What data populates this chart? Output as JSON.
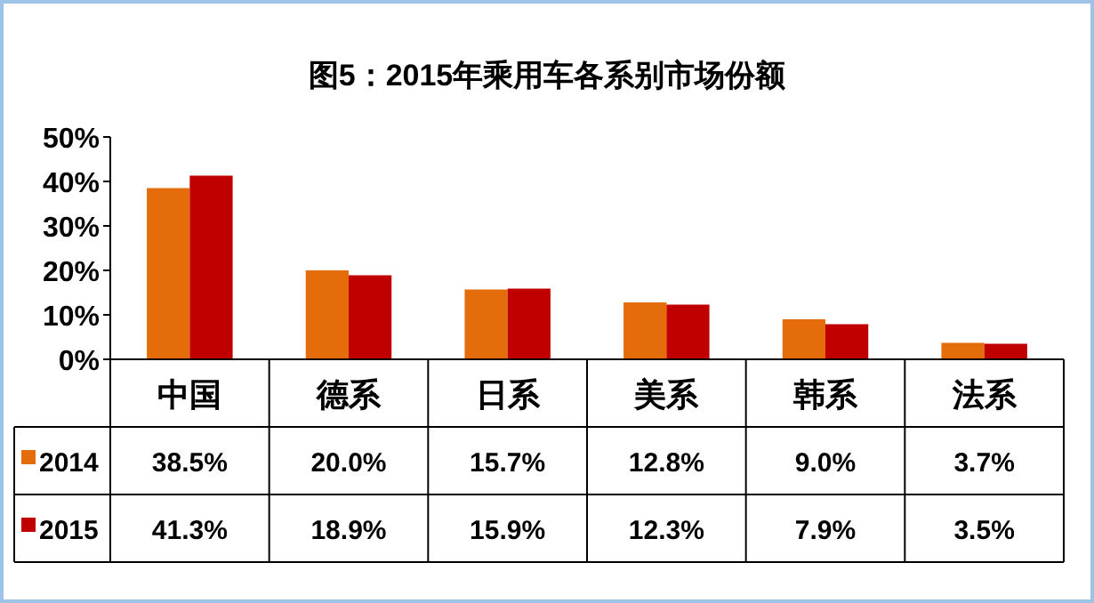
{
  "chart_data": {
    "type": "bar",
    "title": "图5：2015年乘用车各系别市场份额",
    "categories": [
      "中国",
      "德系",
      "日系",
      "美系",
      "韩系",
      "法系"
    ],
    "series": [
      {
        "name": "2014",
        "color": "#e46c0a",
        "values": [
          38.5,
          20.0,
          15.7,
          12.8,
          9.0,
          3.7
        ],
        "value_labels": [
          "38.5%",
          "20.0%",
          "15.7%",
          "12.8%",
          "9.0%",
          "3.7%"
        ]
      },
      {
        "name": "2015",
        "color": "#c00000",
        "values": [
          41.3,
          18.9,
          15.9,
          12.3,
          7.9,
          3.5
        ],
        "value_labels": [
          "41.3%",
          "18.9%",
          "15.9%",
          "12.3%",
          "7.9%",
          "3.5%"
        ]
      }
    ],
    "ylim": [
      0,
      50
    ],
    "yticks": [
      {
        "value": 0,
        "label": "0%"
      },
      {
        "value": 10,
        "label": "10%"
      },
      {
        "value": 20,
        "label": "20%"
      },
      {
        "value": 30,
        "label": "30%"
      },
      {
        "value": 40,
        "label": "40%"
      },
      {
        "value": 50,
        "label": "50%"
      }
    ],
    "legend": "bottom left"
  }
}
